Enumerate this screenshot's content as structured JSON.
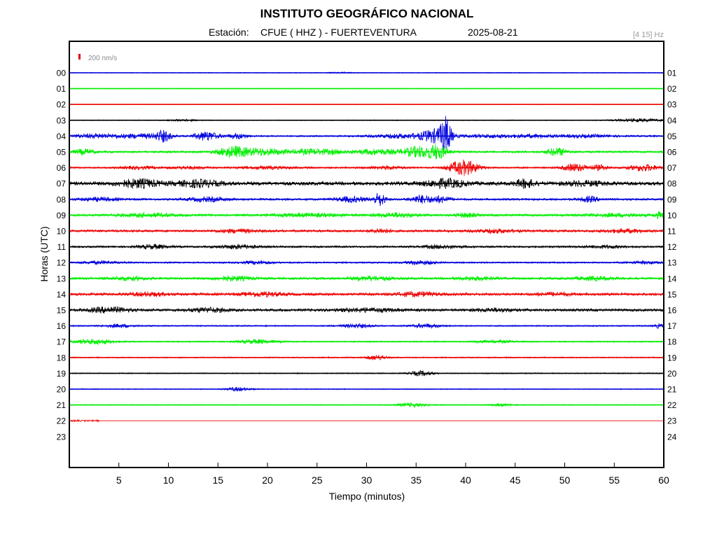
{
  "header": {
    "institution": "INSTITUTO GEOGRÁFICO NACIONAL",
    "station_label": "Estación:",
    "station": "CFUE ( HHZ ) - FUERTEVENTURA",
    "date": "2025-08-21",
    "filter": "[4 15] Hz"
  },
  "scale_label": "200 nm/s",
  "colors": {
    "blue": "#0000dd",
    "green": "#00ee00",
    "red": "#ee0000",
    "black": "#000000",
    "scale_mark": "#dd0000",
    "filter_text": "#999999",
    "scale_text": "#888888"
  },
  "chart_data": {
    "type": "line",
    "title": "INSTITUTO GEOGRÁFICO NACIONAL",
    "subtitle": "Estación:  CFUE ( HHZ ) - FUERTEVENTURA        2025-08-21",
    "xlabel": "Tiempo (minutos)",
    "ylabel": "Horas (UTC)",
    "xlim": [
      0,
      60
    ],
    "x_ticks": [
      5,
      10,
      15,
      20,
      25,
      30,
      35,
      40,
      45,
      50,
      55,
      60
    ],
    "left_labels": [
      "00",
      "01",
      "02",
      "03",
      "04",
      "05",
      "06",
      "07",
      "08",
      "09",
      "10",
      "11",
      "12",
      "13",
      "14",
      "15",
      "16",
      "17",
      "18",
      "19",
      "20",
      "21",
      "22",
      "23"
    ],
    "right_labels": [
      "01",
      "02",
      "03",
      "04",
      "05",
      "06",
      "07",
      "08",
      "09",
      "10",
      "11",
      "12",
      "13",
      "14",
      "15",
      "16",
      "17",
      "18",
      "19",
      "20",
      "21",
      "22",
      "23",
      "24"
    ],
    "grid": false,
    "legend": "none",
    "trace_color_cycle": [
      "blue",
      "green",
      "red",
      "black"
    ],
    "traces": [
      {
        "hour": "00",
        "color": "blue",
        "level": 0.3,
        "duration_min": 60,
        "events": [
          [
            27.5,
            1.4,
            0.3
          ]
        ]
      },
      {
        "hour": "01",
        "color": "green",
        "level": 0.25,
        "duration_min": 60,
        "events": []
      },
      {
        "hour": "02",
        "color": "red",
        "level": 0.25,
        "duration_min": 60,
        "events": []
      },
      {
        "hour": "03",
        "color": "black",
        "level": 0.3,
        "duration_min": 60,
        "events": [
          [
            11.5,
            1.5,
            0.6
          ],
          [
            57.5,
            2.5,
            1.2
          ]
        ]
      },
      {
        "hour": "04",
        "color": "blue",
        "level": 0.6,
        "duration_min": 60,
        "events": [
          [
            3,
            3,
            1.5
          ],
          [
            7.5,
            2,
            1.5
          ],
          [
            9.5,
            0.8,
            4
          ],
          [
            13.8,
            1.2,
            3.5
          ],
          [
            17,
            1,
            2
          ],
          [
            33.5,
            3,
            1.5
          ],
          [
            37,
            1.5,
            5
          ],
          [
            38,
            0.5,
            12
          ],
          [
            42.5,
            3,
            1.2
          ],
          [
            47,
            2,
            1
          ],
          [
            52,
            3,
            1
          ]
        ]
      },
      {
        "hour": "05",
        "color": "green",
        "level": 0.8,
        "duration_min": 60,
        "events": [
          [
            1.5,
            1,
            2
          ],
          [
            16.5,
            1.5,
            4
          ],
          [
            19.5,
            2,
            2.5
          ],
          [
            25,
            3,
            2
          ],
          [
            31,
            2,
            2
          ],
          [
            35.2,
            1.5,
            4
          ],
          [
            37.2,
            1,
            5
          ],
          [
            49.2,
            1,
            3
          ]
        ]
      },
      {
        "hour": "06",
        "color": "red",
        "level": 0.6,
        "duration_min": 60,
        "events": [
          [
            7,
            2,
            1
          ],
          [
            12,
            2,
            1
          ],
          [
            20,
            3,
            1
          ],
          [
            32,
            2,
            1.2
          ],
          [
            39.8,
            1.5,
            6
          ],
          [
            51,
            1.2,
            3
          ],
          [
            53.5,
            1,
            2
          ],
          [
            58,
            1.5,
            2.5
          ]
        ]
      },
      {
        "hour": "07",
        "color": "black",
        "level": 1.4,
        "duration_min": 60,
        "events": [
          [
            7,
            2,
            3
          ],
          [
            13,
            2,
            2.5
          ],
          [
            38,
            2,
            3
          ],
          [
            46,
            1,
            3
          ],
          [
            52,
            2,
            1.5
          ]
        ]
      },
      {
        "hour": "08",
        "color": "blue",
        "level": 0.8,
        "duration_min": 60,
        "events": [
          [
            3,
            2,
            1.2
          ],
          [
            14,
            2,
            1.5
          ],
          [
            28.5,
            1.5,
            2
          ],
          [
            31.3,
            0.6,
            5
          ],
          [
            35.5,
            1,
            3
          ],
          [
            37.5,
            1,
            2.5
          ],
          [
            52.5,
            1,
            2
          ]
        ]
      },
      {
        "hour": "09",
        "color": "green",
        "level": 0.9,
        "duration_min": 60,
        "events": [
          [
            8,
            3,
            1.2
          ],
          [
            24,
            4,
            1
          ],
          [
            33,
            2,
            1.5
          ],
          [
            40,
            1,
            1.5
          ],
          [
            55,
            3,
            1
          ],
          [
            59.5,
            0.5,
            2
          ]
        ]
      },
      {
        "hour": "10",
        "color": "red",
        "level": 0.9,
        "duration_min": 60,
        "events": [
          [
            17,
            2,
            1.2
          ],
          [
            31.5,
            1,
            1.5
          ],
          [
            43,
            2,
            1.2
          ],
          [
            56,
            2,
            1.2
          ]
        ]
      },
      {
        "hour": "11",
        "color": "black",
        "level": 0.7,
        "duration_min": 60,
        "events": [
          [
            8.5,
            1.5,
            1.5
          ],
          [
            17,
            2,
            1.5
          ],
          [
            37.5,
            2,
            1.2
          ],
          [
            54,
            2,
            1
          ]
        ]
      },
      {
        "hour": "12",
        "color": "blue",
        "level": 0.6,
        "duration_min": 60,
        "events": [
          [
            3,
            2,
            1
          ],
          [
            19,
            1.5,
            1.2
          ],
          [
            35.5,
            1.5,
            1.5
          ],
          [
            58,
            1.5,
            1
          ]
        ]
      },
      {
        "hour": "13",
        "color": "green",
        "level": 0.9,
        "duration_min": 60,
        "events": [
          [
            6,
            2,
            1.2
          ],
          [
            16.5,
            2,
            1.5
          ],
          [
            30.5,
            2,
            1.5
          ],
          [
            41,
            2,
            1.2
          ],
          [
            53,
            2,
            1.2
          ]
        ]
      },
      {
        "hour": "14",
        "color": "red",
        "level": 1.0,
        "duration_min": 60,
        "events": [
          [
            8,
            2,
            1.2
          ],
          [
            19.5,
            2,
            1.5
          ],
          [
            35,
            2,
            1.5
          ],
          [
            49,
            2,
            1
          ]
        ]
      },
      {
        "hour": "15",
        "color": "black",
        "level": 1.0,
        "duration_min": 60,
        "events": [
          [
            4,
            2,
            2
          ],
          [
            14,
            2,
            1.5
          ],
          [
            30,
            3,
            1.2
          ],
          [
            43,
            2,
            1
          ]
        ]
      },
      {
        "hour": "16",
        "color": "blue",
        "level": 0.5,
        "duration_min": 60,
        "events": [
          [
            5,
            1.5,
            1.2
          ],
          [
            29,
            1.5,
            1.5
          ],
          [
            36,
            1.5,
            1.5
          ],
          [
            59.5,
            0.5,
            1.5
          ]
        ]
      },
      {
        "hour": "17",
        "color": "green",
        "level": 0.5,
        "duration_min": 60,
        "events": [
          [
            2.5,
            2,
            2
          ],
          [
            19,
            2,
            1.5
          ],
          [
            43,
            2,
            1
          ]
        ]
      },
      {
        "hour": "18",
        "color": "red",
        "level": 0.45,
        "duration_min": 60,
        "events": [
          [
            31,
            1,
            2
          ]
        ]
      },
      {
        "hour": "19",
        "color": "black",
        "level": 0.4,
        "duration_min": 60,
        "events": [
          [
            35.5,
            1.2,
            1.8
          ]
        ]
      },
      {
        "hour": "20",
        "color": "blue",
        "level": 0.35,
        "duration_min": 60,
        "events": [
          [
            17,
            1.2,
            1.5
          ]
        ]
      },
      {
        "hour": "21",
        "color": "green",
        "level": 0.35,
        "duration_min": 60,
        "events": [
          [
            34.5,
            1.5,
            1.5
          ],
          [
            43.5,
            1,
            1
          ]
        ]
      },
      {
        "hour": "22",
        "color": "red",
        "level": 0.6,
        "duration_min": 3.1,
        "events": []
      }
    ]
  }
}
